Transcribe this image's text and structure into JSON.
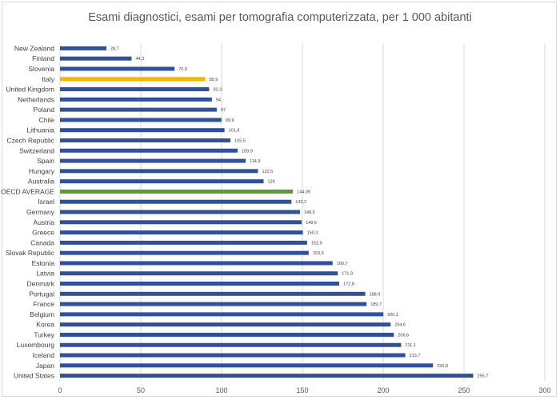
{
  "chart_data": {
    "type": "bar",
    "orientation": "horizontal",
    "title": "Esami diagnostici, esami per tomografia computerizzata, per 1 000 abitanti",
    "xlabel": "",
    "ylabel": "",
    "xlim": [
      0,
      300
    ],
    "xticks": [
      0,
      50,
      100,
      150,
      200,
      250,
      300
    ],
    "grid": true,
    "legend": "none",
    "colors": {
      "default": "#2f4f9f",
      "highlight": "#f5b800",
      "average": "#5a9e2f"
    },
    "categories": [
      "New Zealand",
      "Finland",
      "Slovenia",
      "Italy",
      "United Kingdom",
      "Netherlands",
      "Poland",
      "Chile",
      "Lithuania",
      "Czech Republic",
      "Switzerland",
      "Spain",
      "Hungary",
      "Australia",
      "OECD AVERAGE",
      "Israel",
      "Germany",
      "Austria",
      "Greece",
      "Canada",
      "Slovak Republic",
      "Estonia",
      "Latvia",
      "Denmark",
      "Portugal",
      "France",
      "Belgium",
      "Korea",
      "Turkey",
      "Luxembourg",
      "Iceland",
      "Japan",
      "United States"
    ],
    "values": [
      28.7,
      44.3,
      70.9,
      89.9,
      92.3,
      94,
      97,
      99.9,
      101.8,
      105.5,
      109.9,
      114.9,
      122.5,
      126,
      144.09,
      143.2,
      148.5,
      149.6,
      150.3,
      152.9,
      153.9,
      168.7,
      171.9,
      172.8,
      188.9,
      189.7,
      200.1,
      204.6,
      206.6,
      211.1,
      213.7,
      230.8,
      255.7
    ],
    "labels": [
      "28,7",
      "44,3",
      "70,9",
      "89,9",
      "92,3",
      "94",
      "97",
      "99,9",
      "101,8",
      "105,5",
      "109,9",
      "114,9",
      "122,5",
      "126",
      "144,09",
      "143,2",
      "148,5",
      "149,6",
      "150,3",
      "152,9",
      "153,9",
      "168,7",
      "171,9",
      "172,8",
      "188,9",
      "189,7",
      "200,1",
      "204,6",
      "206,6",
      "211,1",
      "213,7",
      "230,8",
      "255,7"
    ],
    "highlight": {
      "Italy": "highlight",
      "OECD AVERAGE": "average"
    }
  }
}
